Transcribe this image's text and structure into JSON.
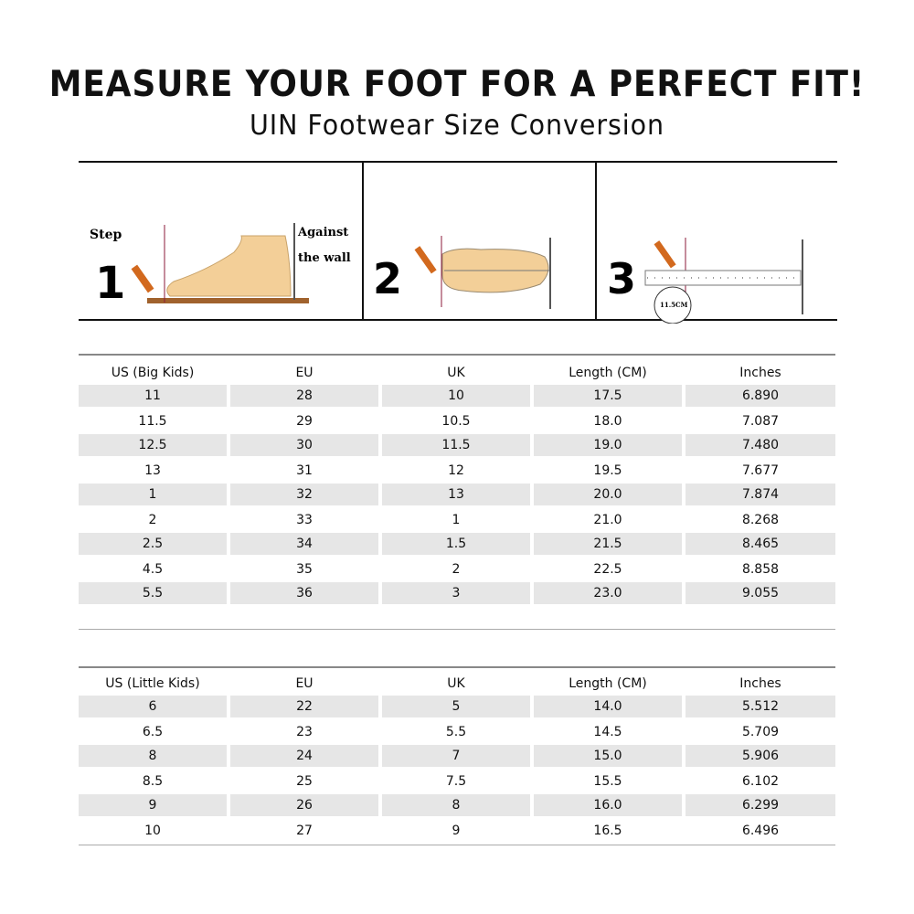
{
  "title": "MEASURE YOUR FOOT FOR A PERFECT FIT!",
  "subtitle": "UIN Footwear Size Conversion",
  "steps": {
    "step_label": "Step",
    "numbers": [
      "1",
      "2",
      "3"
    ],
    "wall_label_1": "Against",
    "wall_label_2": "the wall",
    "measure_label": "11.5CM"
  },
  "big_kids": {
    "headers": [
      "US (Big Kids)",
      "EU",
      "UK",
      "Length (CM)",
      "Inches"
    ],
    "rows": [
      [
        "11",
        "28",
        "10",
        "17.5",
        "6.890"
      ],
      [
        "11.5",
        "29",
        "10.5",
        "18.0",
        "7.087"
      ],
      [
        "12.5",
        "30",
        "11.5",
        "19.0",
        "7.480"
      ],
      [
        "13",
        "31",
        "12",
        "19.5",
        "7.677"
      ],
      [
        "1",
        "32",
        "13",
        "20.0",
        "7.874"
      ],
      [
        "2",
        "33",
        "1",
        "21.0",
        "8.268"
      ],
      [
        "2.5",
        "34",
        "1.5",
        "21.5",
        "8.465"
      ],
      [
        "4.5",
        "35",
        "2",
        "22.5",
        "8.858"
      ],
      [
        "5.5",
        "36",
        "3",
        "23.0",
        "9.055"
      ]
    ]
  },
  "little_kids": {
    "headers": [
      "US (Little Kids)",
      "EU",
      "UK",
      "Length (CM)",
      "Inches"
    ],
    "rows": [
      [
        "6",
        "22",
        "5",
        "14.0",
        "5.512"
      ],
      [
        "6.5",
        "23",
        "5.5",
        "14.5",
        "5.709"
      ],
      [
        "8",
        "24",
        "7",
        "15.0",
        "5.906"
      ],
      [
        "8.5",
        "25",
        "7.5",
        "15.5",
        "6.102"
      ],
      [
        "9",
        "26",
        "8",
        "16.0",
        "6.299"
      ],
      [
        "10",
        "27",
        "9",
        "16.5",
        "6.496"
      ]
    ]
  },
  "colors": {
    "row_shade": "#e6e6e6",
    "foot": "#f3cf98",
    "pencil": "#d2691e",
    "rule": "#888888"
  }
}
